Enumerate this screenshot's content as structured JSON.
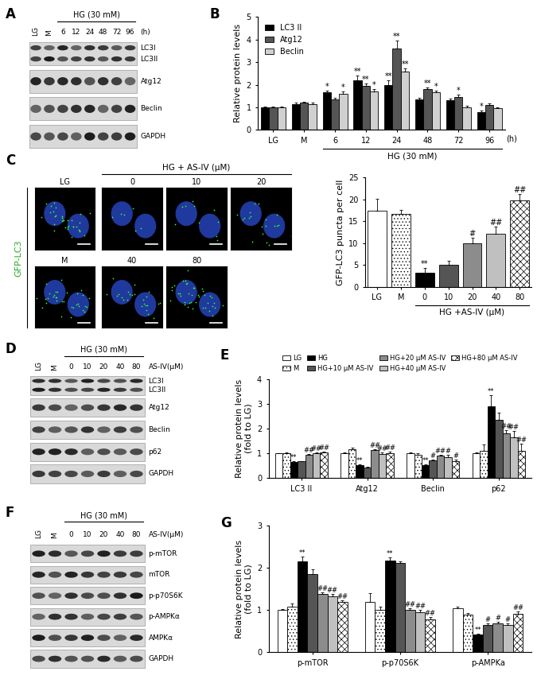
{
  "chart_data": [
    {
      "panel": "B",
      "type": "bar",
      "ylabel": "Relative protein levels",
      "categories": [
        "LG",
        "M",
        "6",
        "12",
        "24",
        "48",
        "72",
        "96"
      ],
      "group_label": "HG (30 mM)",
      "group_categories": [
        "6",
        "12",
        "24",
        "48",
        "72",
        "96"
      ],
      "xlabel": "(h)",
      "ylim": [
        0,
        5
      ],
      "yticks": [
        0,
        1,
        2,
        3,
        4,
        5
      ],
      "legend": "upper left",
      "series": [
        {
          "name": "LC3 II",
          "color": "#000000",
          "values": [
            1.0,
            1.15,
            1.65,
            2.2,
            2.0,
            1.35,
            1.3,
            0.8
          ],
          "errors": [
            0.03,
            0.06,
            0.08,
            0.22,
            0.18,
            0.06,
            0.08,
            0.05
          ],
          "annotations": [
            null,
            null,
            "*",
            "**",
            "**",
            null,
            null,
            "*"
          ]
        },
        {
          "name": "Atg12",
          "color": "#555555",
          "values": [
            1.0,
            1.2,
            1.35,
            1.95,
            3.6,
            1.8,
            1.45,
            1.1
          ],
          "errors": [
            0.03,
            0.05,
            0.07,
            0.12,
            0.35,
            0.08,
            0.1,
            0.07
          ],
          "annotations": [
            null,
            null,
            null,
            "**",
            "**",
            "**",
            "*",
            null
          ]
        },
        {
          "name": "Beclin",
          "color": "#d0d0d0",
          "values": [
            1.0,
            1.15,
            1.6,
            1.7,
            2.6,
            1.65,
            1.0,
            0.95
          ],
          "errors": [
            0.03,
            0.06,
            0.1,
            0.1,
            0.12,
            0.1,
            0.06,
            0.06
          ],
          "annotations": [
            null,
            null,
            "*",
            "*",
            "**",
            "*",
            null,
            null
          ]
        }
      ]
    },
    {
      "type": "bar",
      "ylabel": "GFP-LC3 puncta per cell",
      "categories": [
        "LG",
        "M",
        "0",
        "10",
        "20",
        "40",
        "80"
      ],
      "group_label": "HG +AS-IV (μM)",
      "group_categories": [
        "0",
        "10",
        "20",
        "40",
        "80"
      ],
      "ylim": [
        0,
        25
      ],
      "yticks": [
        0,
        5,
        10,
        15,
        20,
        25
      ],
      "values": [
        17.5,
        16.7,
        3.2,
        5.1,
        10.0,
        12.2,
        19.8
      ],
      "errors": [
        2.7,
        0.9,
        1.2,
        0.8,
        1.2,
        1.5,
        1.5
      ],
      "annotations": [
        null,
        null,
        "**",
        null,
        "#",
        "##",
        "##"
      ],
      "colors": [
        "#ffffff",
        "#ffffff",
        "#000000",
        "#555555",
        "#8c8c8c",
        "#c0c0c0",
        "#ffffff"
      ]
    },
    {
      "panel": "E",
      "type": "bar",
      "ylabel": "Relative protein levels\n(fold to LG)",
      "categories": [
        "LC3 II",
        "Atg12",
        "Beclin",
        "p62"
      ],
      "ylim": [
        0,
        4
      ],
      "yticks": [
        0,
        1,
        2,
        3,
        4
      ],
      "legend": "top",
      "series": [
        {
          "name": "LG",
          "color": "#ffffff",
          "values": [
            1.0,
            1.0,
            1.0,
            1.0
          ],
          "errors": [
            0.02,
            0.03,
            0.03,
            0.05
          ],
          "annotations": [
            null,
            null,
            null,
            null
          ]
        },
        {
          "name": "M",
          "color": "#ffffff",
          "values": [
            1.02,
            1.15,
            0.95,
            1.1
          ],
          "errors": [
            0.03,
            0.08,
            0.04,
            0.25
          ],
          "annotations": [
            null,
            null,
            null,
            null
          ]
        },
        {
          "name": "HG",
          "color": "#000000",
          "values": [
            0.65,
            0.52,
            0.52,
            2.9
          ],
          "errors": [
            0.02,
            0.05,
            0.04,
            0.45
          ],
          "annotations": [
            "**",
            "**",
            "**",
            "**"
          ]
        },
        {
          "name": "HG+10 μM AS-IV",
          "color": "#555555",
          "values": [
            0.68,
            0.42,
            0.72,
            2.35
          ],
          "errors": [
            0.02,
            0.04,
            0.04,
            0.3
          ],
          "annotations": [
            null,
            null,
            "#",
            null
          ]
        },
        {
          "name": "HG+20 μM AS-IV",
          "color": "#8c8c8c",
          "values": [
            0.93,
            1.12,
            0.9,
            1.8
          ],
          "errors": [
            0.03,
            0.06,
            0.05,
            0.15
          ],
          "annotations": [
            "##",
            "##",
            "##",
            "##"
          ]
        },
        {
          "name": "HG+40 μM AS-IV",
          "color": "#c0c0c0",
          "values": [
            1.02,
            0.98,
            0.85,
            1.65
          ],
          "errors": [
            0.03,
            0.06,
            0.08,
            0.25
          ],
          "annotations": [
            "##",
            "##",
            "#",
            "##"
          ]
        },
        {
          "name": "HG+80 μM AS-IV",
          "color": "#ffffff",
          "values": [
            1.05,
            1.0,
            0.7,
            1.1
          ],
          "errors": [
            0.03,
            0.07,
            0.05,
            0.3
          ],
          "annotations": [
            "##",
            "##",
            "#",
            "##"
          ]
        }
      ]
    },
    {
      "panel": "G",
      "type": "bar",
      "ylabel": "Relative protein levels\n(fold to LG)",
      "categories": [
        "p-mTOR",
        "p-p70S6K",
        "p-AMPKa"
      ],
      "ylim": [
        0,
        3
      ],
      "yticks": [
        0,
        1,
        2,
        3
      ],
      "series": [
        {
          "color": "#ffffff",
          "values": [
            1.0,
            1.2,
            1.05
          ],
          "errors": [
            0.03,
            0.2,
            0.04
          ],
          "annotations": [
            null,
            null,
            null
          ]
        },
        {
          "color": "#ffffff",
          "values": [
            1.08,
            1.0,
            0.9
          ],
          "errors": [
            0.08,
            0.08,
            0.03
          ],
          "annotations": [
            null,
            null,
            null
          ]
        },
        {
          "color": "#000000",
          "values": [
            2.15,
            2.18,
            0.42
          ],
          "errors": [
            0.12,
            0.08,
            0.03
          ],
          "annotations": [
            "**",
            "**",
            "**"
          ]
        },
        {
          "color": "#555555",
          "values": [
            1.85,
            2.12,
            0.65
          ],
          "errors": [
            0.12,
            0.03,
            0.04
          ],
          "annotations": [
            null,
            null,
            "#"
          ]
        },
        {
          "color": "#8c8c8c",
          "values": [
            1.38,
            1.0,
            0.68
          ],
          "errors": [
            0.05,
            0.05,
            0.04
          ],
          "annotations": [
            "##",
            "##",
            "#"
          ]
        },
        {
          "color": "#c0c0c0",
          "values": [
            1.33,
            0.95,
            0.65
          ],
          "errors": [
            0.05,
            0.05,
            0.03
          ],
          "annotations": [
            "##",
            "##",
            "#"
          ]
        },
        {
          "color": "#ffffff",
          "values": [
            1.2,
            0.78,
            0.92
          ],
          "errors": [
            0.03,
            0.06,
            0.04
          ],
          "annotations": [
            "##",
            "##",
            "##"
          ]
        }
      ]
    }
  ],
  "blots": [
    {
      "panel": "A",
      "lanes": [
        "LG",
        "M",
        "6",
        "12",
        "24",
        "48",
        "72",
        "96"
      ],
      "group_label": "HG (30 mM)",
      "group_lanes": [
        "6",
        "12",
        "24",
        "48",
        "72",
        "96"
      ],
      "lane_unit": "(h)",
      "rows": [
        [
          "LC3I",
          "LC3II"
        ],
        [
          "Atg12"
        ],
        [
          "Beclin"
        ],
        [
          "GAPDH"
        ]
      ]
    },
    {
      "panel": "D",
      "lanes": [
        "LG",
        "M",
        "0",
        "10",
        "20",
        "40",
        "80"
      ],
      "group_label": "HG (30 mM)",
      "group_lanes": [
        "0",
        "10",
        "20",
        "40",
        "80"
      ],
      "lane_unit": "AS-IV(μM)",
      "rows": [
        [
          "LC3I",
          "LC3II"
        ],
        [
          "Atg12"
        ],
        [
          "Beclin"
        ],
        [
          "p62"
        ],
        [
          "GAPDH"
        ]
      ]
    },
    {
      "panel": "F",
      "lanes": [
        "LG",
        "M",
        "0",
        "10",
        "20",
        "40",
        "80"
      ],
      "group_label": "HG (30 mM)",
      "group_lanes": [
        "0",
        "10",
        "20",
        "40",
        "80"
      ],
      "lane_unit": "AS-IV(μM)",
      "rows": [
        [
          "p-mTOR"
        ],
        [
          "mTOR"
        ],
        [
          "p-p70S6K"
        ],
        [
          "p-AMPKα"
        ],
        [
          "AMPKα"
        ],
        [
          "GAPDH"
        ]
      ]
    }
  ],
  "micrographs": {
    "panel": "C",
    "side_label": "GFP-LC3",
    "group_label": "HG + AS-IV (μM)",
    "images": [
      "LG",
      "M",
      "0",
      "10",
      "20",
      "40",
      "80"
    ]
  }
}
